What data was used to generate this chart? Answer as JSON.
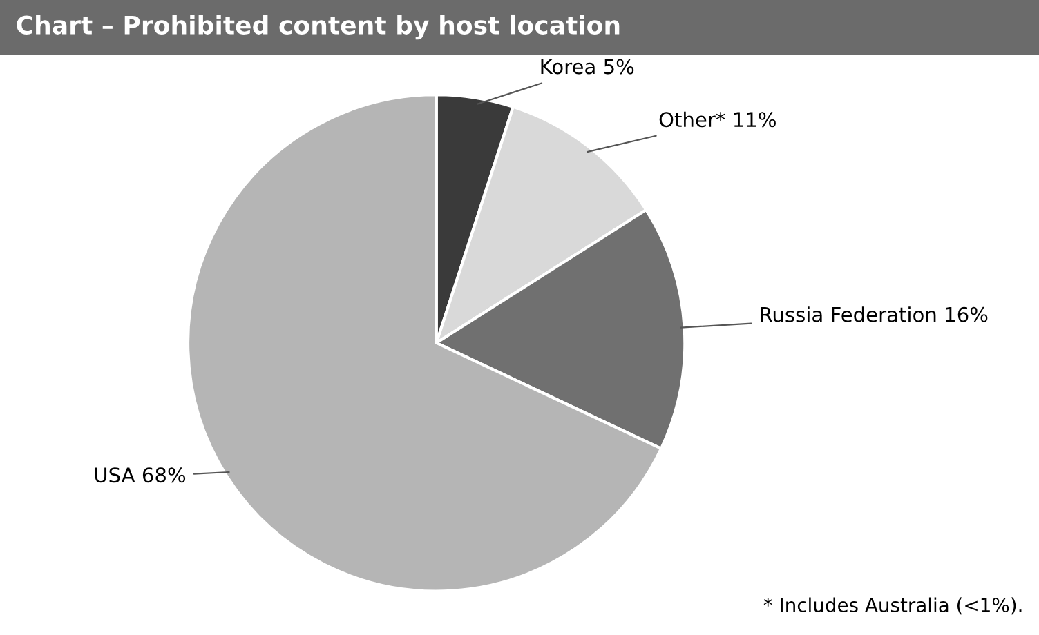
{
  "chart_data": {
    "type": "pie",
    "title": "Chart – Prohibited content by host location",
    "categories": [
      "Korea",
      "Other*",
      "Russia Federation",
      "USA"
    ],
    "values": [
      5,
      11,
      16,
      68
    ],
    "value_labels": [
      "5%",
      "11%",
      "16%",
      "68%"
    ],
    "colors": [
      "#3a3a3a",
      "#d9d9d9",
      "#707070",
      "#b5b5b5"
    ],
    "annotations": [
      "* Includes Australia (<1%)."
    ]
  }
}
